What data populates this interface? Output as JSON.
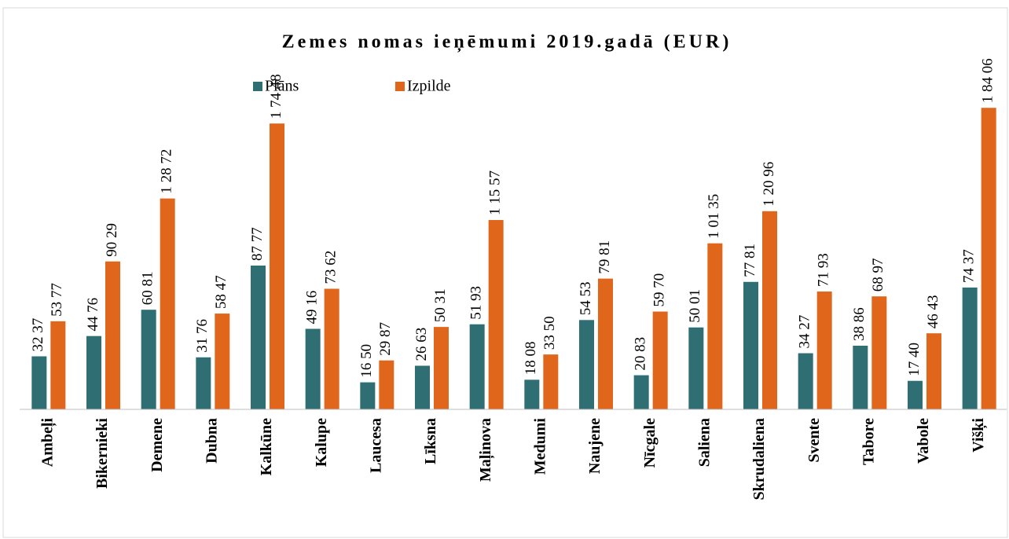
{
  "chart_data": {
    "type": "bar",
    "title": "Zemes nomas ieņēmumi 2019.gadā (EUR)",
    "categories": [
      "Ambeļi",
      "Bikernieki",
      "Demene",
      "Dubna",
      "Kalkūne",
      "Kalupe",
      "Laucesa",
      "Līksna",
      "Maļinova",
      "Medumi",
      "Naujene",
      "Nīcgale",
      "Saliena",
      "Skrudaliena",
      "Svente",
      "Tabore",
      "Vabole",
      "Višķi"
    ],
    "series": [
      {
        "name": "Plāns",
        "color": "#2f6f73",
        "values": [
          3237,
          4476,
          6081,
          3176,
          8777,
          4916,
          1650,
          2663,
          5193,
          1808,
          5453,
          2083,
          5001,
          7781,
          3427,
          3886,
          1740,
          7437
        ],
        "value_labels": [
          "32 37",
          "44 76",
          "60 81",
          "31 76",
          "87 77",
          "49 16",
          "16 50",
          "26 63",
          "51 93",
          "18 08",
          "54 53",
          "20 83",
          "50 01",
          "77 81",
          "34 27",
          "38 86",
          "17 40",
          "74 37"
        ]
      },
      {
        "name": "Izpilde",
        "color": "#e0661c",
        "values": [
          5377,
          9029,
          12872,
          5847,
          17448,
          7362,
          2987,
          5031,
          11557,
          3350,
          7981,
          5970,
          10135,
          12096,
          7193,
          6897,
          4643,
          18406
        ],
        "value_labels": [
          "53 77",
          "90 29",
          "1 28 72",
          "58 47",
          "1 74 48",
          "73 62",
          "29 87",
          "50 31",
          "1 15 57",
          "33 50",
          "79 81",
          "59 70",
          "1 01 35",
          "1 20 96",
          "71 93",
          "68 97",
          "46 43",
          "1 84 06"
        ]
      }
    ],
    "ylim": [
      0,
      20000
    ]
  }
}
